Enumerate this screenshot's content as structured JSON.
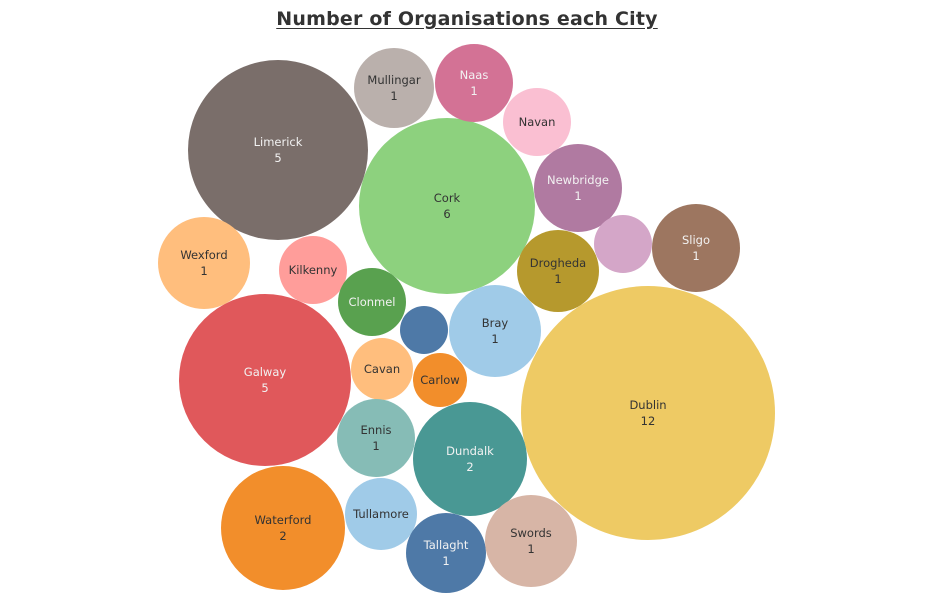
{
  "chart_data": {
    "type": "bubble",
    "title": "Number of Organisations each City",
    "bubbles": [
      {
        "label": "Dublin",
        "value": "12",
        "color": "#EECA64",
        "text_color": "#333333"
      },
      {
        "label": "Cork",
        "value": "6",
        "color": "#8DD17E",
        "text_color": "#333333"
      },
      {
        "label": "Limerick",
        "value": "5",
        "color": "#7A6E6A",
        "text_color": "#f2f2f2"
      },
      {
        "label": "Galway",
        "value": "5",
        "color": "#E0585B",
        "text_color": "#f2f2f2"
      },
      {
        "label": "Waterford",
        "value": "2",
        "color": "#F28E2B",
        "text_color": "#333333"
      },
      {
        "label": "Dundalk",
        "value": "2",
        "color": "#499894",
        "text_color": "#f2f2f2"
      },
      {
        "label": "Mullingar",
        "value": "1",
        "color": "#BAB0AC",
        "text_color": "#333333"
      },
      {
        "label": "Naas",
        "value": "1",
        "color": "#D37295",
        "text_color": "#f2f2f2"
      },
      {
        "label": "Navan",
        "value": "",
        "color": "#FABFD2",
        "text_color": "#333333"
      },
      {
        "label": "Newbridge",
        "value": "1",
        "color": "#B07AA1",
        "text_color": "#f2f2f2"
      },
      {
        "label": "",
        "value": "",
        "color": "#D4A6C8",
        "text_color": "#333333"
      },
      {
        "label": "Sligo",
        "value": "1",
        "color": "#9D7660",
        "text_color": "#f2f2f2"
      },
      {
        "label": "Wexford",
        "value": "1",
        "color": "#FFBE7D",
        "text_color": "#333333"
      },
      {
        "label": "Kilkenny",
        "value": "",
        "color": "#FF9D9A",
        "text_color": "#333333"
      },
      {
        "label": "Clonmel",
        "value": "",
        "color": "#59A14F",
        "text_color": "#f2f2f2"
      },
      {
        "label": "",
        "value": "",
        "color": "#4E79A7",
        "text_color": "#f2f2f2"
      },
      {
        "label": "Drogheda",
        "value": "1",
        "color": "#B6992D",
        "text_color": "#333333"
      },
      {
        "label": "Bray",
        "value": "1",
        "color": "#A0CBE8",
        "text_color": "#333333"
      },
      {
        "label": "Cavan",
        "value": "",
        "color": "#FFBE7D",
        "text_color": "#333333"
      },
      {
        "label": "Carlow",
        "value": "",
        "color": "#F28E2B",
        "text_color": "#333333"
      },
      {
        "label": "Ennis",
        "value": "1",
        "color": "#86BCB6",
        "text_color": "#333333"
      },
      {
        "label": "Tullamore",
        "value": "",
        "color": "#A0CBE8",
        "text_color": "#333333"
      },
      {
        "label": "Tallaght",
        "value": "1",
        "color": "#4E79A7",
        "text_color": "#f2f2f2"
      },
      {
        "label": "Swords",
        "value": "1",
        "color": "#D7B5A6",
        "text_color": "#333333"
      }
    ]
  }
}
